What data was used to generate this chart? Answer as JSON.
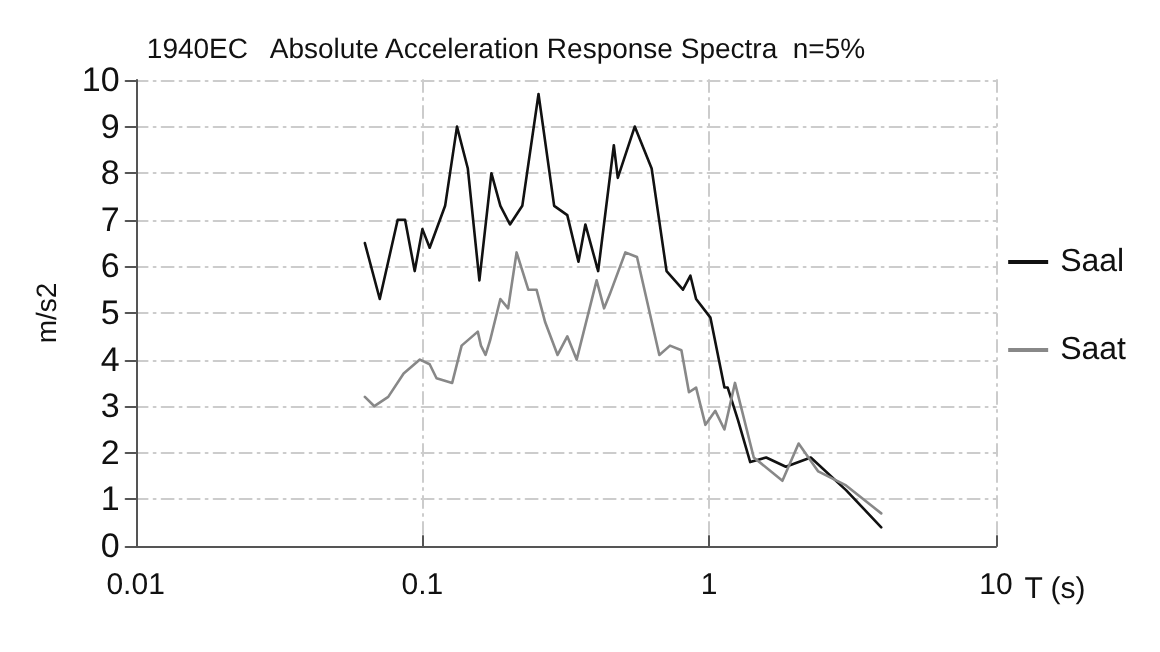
{
  "chart_data": {
    "type": "line",
    "title": "1940EC   Absolute Acceleration Response Spectra  n=5%",
    "xlabel": "T (s)",
    "ylabel": "m/s2",
    "log": "x",
    "xlim": [
      0.01,
      10
    ],
    "xticks": [
      0.01,
      0.1,
      1,
      10
    ],
    "ylim": [
      0,
      10
    ],
    "yticks": [
      0,
      1,
      2,
      3,
      4,
      5,
      6,
      7,
      8,
      9,
      10
    ],
    "grid": true,
    "legend": "right",
    "marker": "none",
    "line_style": "solid",
    "series": [
      {
        "name": "Saal",
        "color": "#111111",
        "x": [
          0.063,
          0.071,
          0.082,
          0.087,
          0.094,
          0.1,
          0.106,
          0.12,
          0.132,
          0.144,
          0.158,
          0.174,
          0.187,
          0.202,
          0.223,
          0.254,
          0.288,
          0.32,
          0.35,
          0.37,
          0.41,
          0.465,
          0.48,
          0.55,
          0.63,
          0.71,
          0.81,
          0.86,
          0.9,
          1.01,
          1.13,
          1.16,
          1.26,
          1.39,
          1.58,
          1.85,
          2.26,
          3.0,
          3.98
        ],
        "values": [
          6.5,
          5.3,
          7.0,
          7.0,
          5.9,
          6.8,
          6.4,
          7.3,
          9.0,
          8.1,
          5.7,
          8.0,
          7.3,
          6.9,
          7.3,
          9.7,
          7.3,
          7.1,
          6.1,
          6.9,
          5.9,
          8.6,
          7.9,
          9.0,
          8.1,
          5.9,
          5.5,
          5.8,
          5.3,
          4.9,
          3.4,
          3.4,
          2.7,
          1.8,
          1.9,
          1.7,
          1.9,
          1.2,
          0.4
        ]
      },
      {
        "name": "Saat",
        "color": "#888888",
        "x": [
          0.063,
          0.068,
          0.076,
          0.086,
          0.098,
          0.106,
          0.112,
          0.127,
          0.137,
          0.156,
          0.16,
          0.166,
          0.172,
          0.187,
          0.199,
          0.213,
          0.234,
          0.25,
          0.268,
          0.296,
          0.32,
          0.345,
          0.405,
          0.43,
          0.45,
          0.51,
          0.56,
          0.67,
          0.73,
          0.8,
          0.85,
          0.9,
          0.97,
          1.05,
          1.13,
          1.23,
          1.43,
          1.8,
          2.05,
          2.4,
          3.0,
          3.98
        ],
        "values": [
          3.2,
          3.0,
          3.2,
          3.7,
          4.0,
          3.9,
          3.6,
          3.5,
          4.3,
          4.6,
          4.3,
          4.1,
          4.4,
          5.3,
          5.1,
          6.3,
          5.5,
          5.5,
          4.8,
          4.1,
          4.5,
          4.0,
          5.7,
          5.1,
          5.4,
          6.3,
          6.2,
          4.1,
          4.3,
          4.2,
          3.3,
          3.4,
          2.6,
          2.9,
          2.5,
          3.5,
          1.9,
          1.4,
          2.2,
          1.6,
          1.3,
          0.7
        ]
      }
    ]
  }
}
